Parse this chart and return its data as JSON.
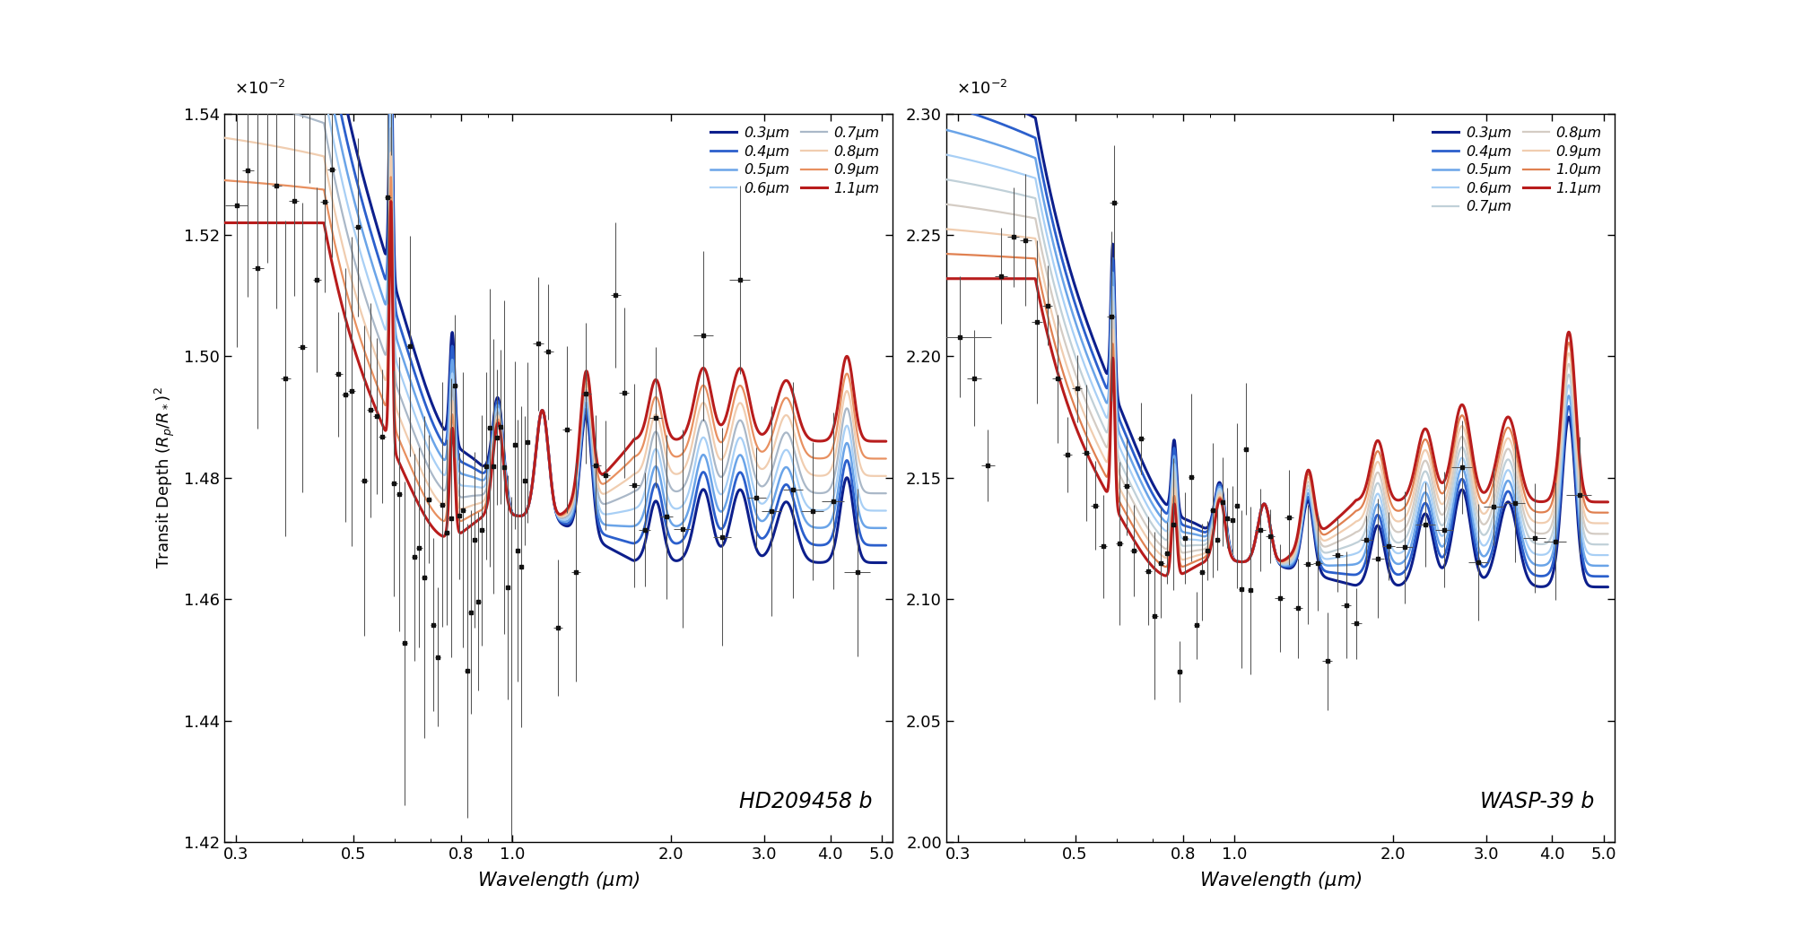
{
  "panel1": {
    "title": "HD209458 b",
    "ylim": [
      0.0142,
      0.0154
    ],
    "yticks": [
      0.0142,
      0.0144,
      0.0146,
      0.0148,
      0.015,
      0.0152,
      0.0154
    ]
  },
  "panel2": {
    "title": "WASP-39 b",
    "ylim": [
      0.02,
      0.023
    ],
    "yticks": [
      0.02,
      0.0205,
      0.021,
      0.0215,
      0.022,
      0.0225,
      0.023
    ]
  },
  "xlabel": "Wavelength ($\\mu m$)",
  "ylabel": "Transit Depth $(R_p/R_*)^2$",
  "p1_legend": [
    "0.3μm",
    "0.4μm",
    "0.5μm",
    "0.6μm",
    "0.7μm",
    "0.8μm",
    "0.9μm",
    "1.1μm"
  ],
  "p1_colors": [
    "#0d1f8c",
    "#2b5fcc",
    "#6aa4e8",
    "#a8cff5",
    "#aab8c8",
    "#f0cdb0",
    "#e89060",
    "#b81c1c"
  ],
  "p2_legend": [
    "0.3μm",
    "0.4μm",
    "0.5μm",
    "0.6μm",
    "0.7μm",
    "0.8μm",
    "0.9μm",
    "1.0μm",
    "1.1μm"
  ],
  "p2_colors": [
    "#0d1f8c",
    "#2b5fcc",
    "#6aa4e8",
    "#a8cff5",
    "#c0d0d8",
    "#d4ccc4",
    "#f0cdb0",
    "#e08050",
    "#b81c1c"
  ],
  "bg_color": "#ffffff"
}
